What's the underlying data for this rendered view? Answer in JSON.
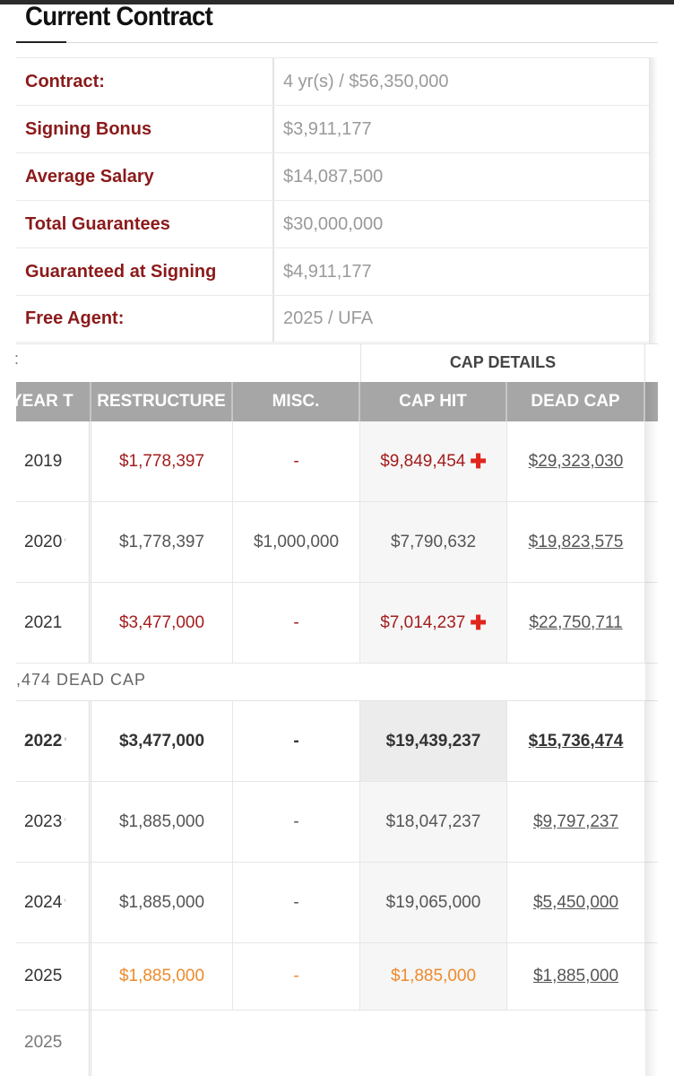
{
  "section": {
    "title": "Current Contract"
  },
  "summary": [
    {
      "label": "Contract:",
      "value": "4 yr(s) / $56,350,000"
    },
    {
      "label": "Signing Bonus",
      "value": "$3,911,177"
    },
    {
      "label": "Average Salary",
      "value": "$14,087,500"
    },
    {
      "label": "Total Guarantees",
      "value": "$30,000,000"
    },
    {
      "label": "Guaranteed at Signing",
      "value": "$4,911,177"
    },
    {
      "label": "Free Agent:",
      "value": "2025 / UFA"
    }
  ],
  "cap_table": {
    "group_header": "CAP DETAILS",
    "group_fragment": ":",
    "columns": [
      "YEAR T",
      "RESTRUCTURE",
      "MISC.",
      "CAP HIT",
      "DEAD CAP"
    ],
    "rows_before": [
      {
        "year": "2019",
        "restructure": "$1,778,397",
        "misc": "-",
        "cap_hit": "$9,849,454",
        "dead_cap": "$29,323,030",
        "style": "red",
        "plus": true
      },
      {
        "year": "2020",
        "restructure": "$1,778,397",
        "misc": "$1,000,000",
        "cap_hit": "$7,790,632",
        "dead_cap": "$19,823,575",
        "style": "normal",
        "plus": false
      },
      {
        "year": "2021",
        "restructure": "$3,477,000",
        "misc": "-",
        "cap_hit": "$7,014,237",
        "dead_cap": "$22,750,711",
        "style": "red",
        "plus": true
      }
    ],
    "dead_cap_caption": ",474 DEAD CAP",
    "rows_after": [
      {
        "year": "2022",
        "restructure": "$3,477,000",
        "misc": "-",
        "cap_hit": "$19,439,237",
        "dead_cap": "$15,736,474",
        "style": "bold"
      },
      {
        "year": "2023",
        "restructure": "$1,885,000",
        "misc": "-",
        "cap_hit": "$18,047,237",
        "dead_cap": "$9,797,237",
        "style": "normal"
      },
      {
        "year": "2024",
        "restructure": "$1,885,000",
        "misc": "-",
        "cap_hit": "$19,065,000",
        "dead_cap": "$5,450,000",
        "style": "normal"
      },
      {
        "year": "2025",
        "restructure": "$1,885,000",
        "misc": "-",
        "cap_hit": "$1,885,000",
        "dead_cap": "$1,885,000",
        "style": "orange"
      }
    ],
    "tail_year": "2025"
  },
  "colors": {
    "label_red": "#8b1a1a",
    "value_red": "#a31d1d",
    "orange": "#ee8a2a",
    "plus_red": "#e0261d",
    "header_gray": "#a6a6a6"
  }
}
